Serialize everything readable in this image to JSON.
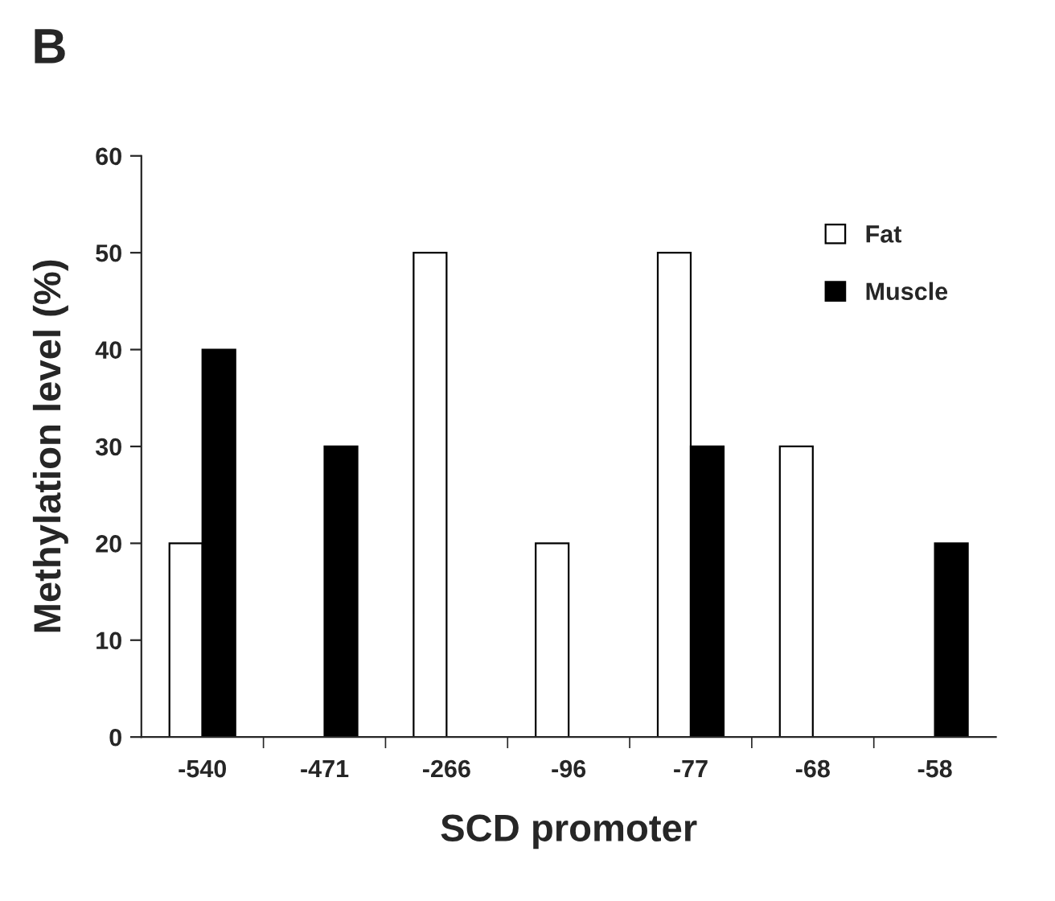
{
  "chart_data": {
    "type": "bar",
    "xlabel": "SCD promoter",
    "ylabel": "Methylation level (%)",
    "annotations": [
      "B"
    ],
    "categories": [
      "-540",
      "-471",
      "-266",
      "-96",
      "-77",
      "-68",
      "-58"
    ],
    "series": [
      {
        "name": "Fat",
        "color": "#ffffff",
        "values": [
          20,
          null,
          50,
          20,
          50,
          30,
          null
        ]
      },
      {
        "name": "Muscle",
        "color": "#000000",
        "values": [
          40,
          30,
          null,
          null,
          30,
          null,
          20
        ]
      }
    ],
    "ylim": [
      0,
      60
    ],
    "yticks": [
      0,
      10,
      20,
      30,
      40,
      50,
      60
    ],
    "grid": false,
    "legend": "top right"
  }
}
